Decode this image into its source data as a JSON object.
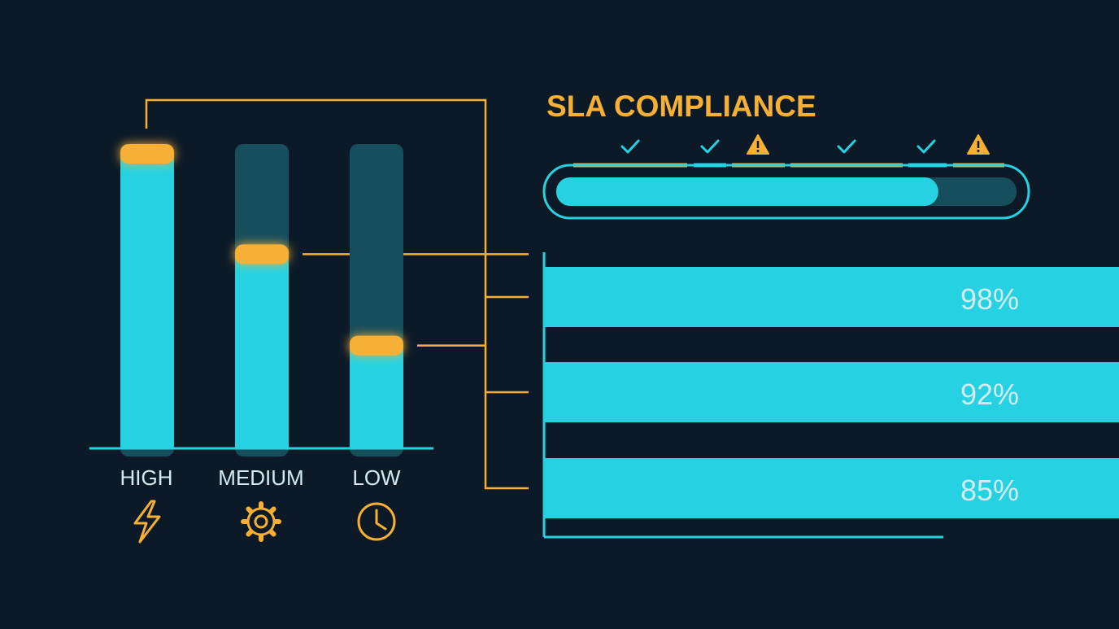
{
  "title": "SLA COMPLIANCE",
  "colors": {
    "background": "#0c1a28",
    "cyan": "#26d2e2",
    "track": "#174e5c",
    "amber": "#f7b034",
    "text": "#d4ebf0"
  },
  "status_row": [
    {
      "status": "ok",
      "icon": "check-icon"
    },
    {
      "status": "ok",
      "icon": "check-icon"
    },
    {
      "status": "warning",
      "icon": "warning-icon"
    },
    {
      "status": "ok",
      "icon": "check-icon"
    },
    {
      "status": "ok",
      "icon": "check-icon"
    },
    {
      "status": "warning",
      "icon": "warning-icon"
    }
  ],
  "chart_data": [
    {
      "type": "bar",
      "orientation": "vertical",
      "categories": [
        "HIGH",
        "MEDIUM",
        "LOW"
      ],
      "category_icons": [
        "lightning-icon",
        "gear-icon",
        "clock-icon"
      ],
      "values": [
        1.0,
        0.67,
        0.37
      ],
      "ylim": [
        0,
        1
      ]
    },
    {
      "type": "bar",
      "orientation": "horizontal",
      "values": [
        98,
        92,
        85
      ],
      "labels": [
        "98%",
        "92%",
        "85%"
      ],
      "xlim": [
        0,
        100
      ]
    }
  ],
  "overall_progress": 0.83
}
